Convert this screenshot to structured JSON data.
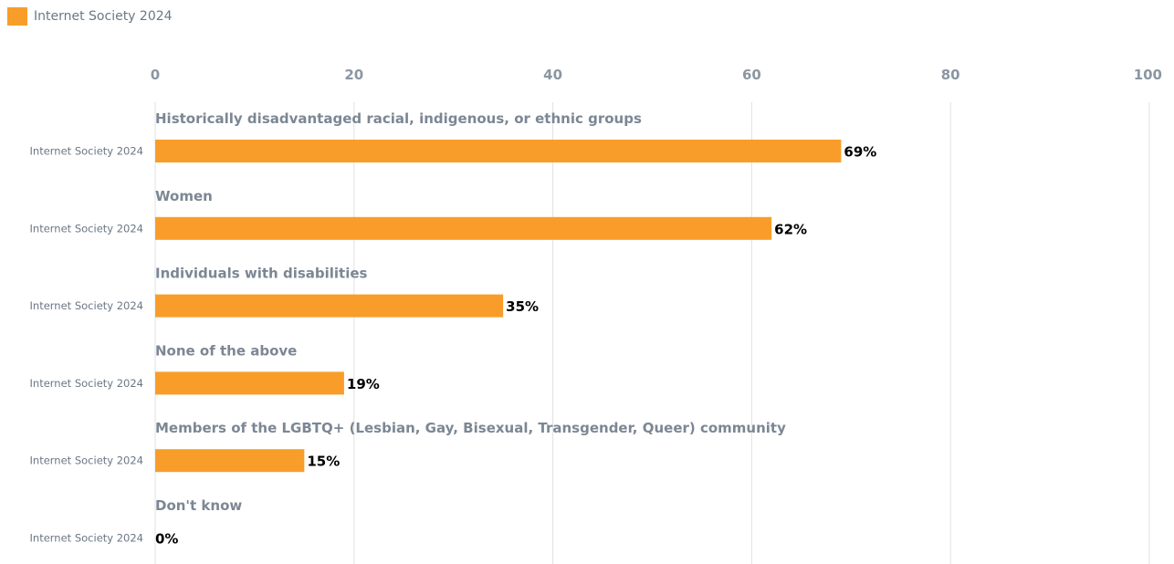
{
  "legend": {
    "label": "Internet Society 2024",
    "color": "#f99d2a"
  },
  "chart_data": {
    "type": "bar",
    "orientation": "horizontal",
    "series": [
      {
        "name": "Internet Society 2024",
        "color": "#f99d2a",
        "values": [
          69,
          62,
          35,
          19,
          15,
          0
        ]
      }
    ],
    "categories": [
      "Historically disadvantaged racial, indigenous, or ethnic groups",
      "Women",
      "Individuals with disabilities",
      "None of the above",
      "Members of the LGBTQ+ (Lesbian, Gay, Bisexual, Transgender, Queer) community",
      "Don't know"
    ],
    "value_labels": [
      "69%",
      "62%",
      "35%",
      "19%",
      "15%",
      "0%"
    ],
    "row_label": "Internet Society 2024",
    "xticks": [
      "0",
      "20",
      "40",
      "60",
      "80",
      "100"
    ],
    "xlim": [
      0,
      100
    ],
    "grid": true,
    "legend_position": "top-left"
  }
}
